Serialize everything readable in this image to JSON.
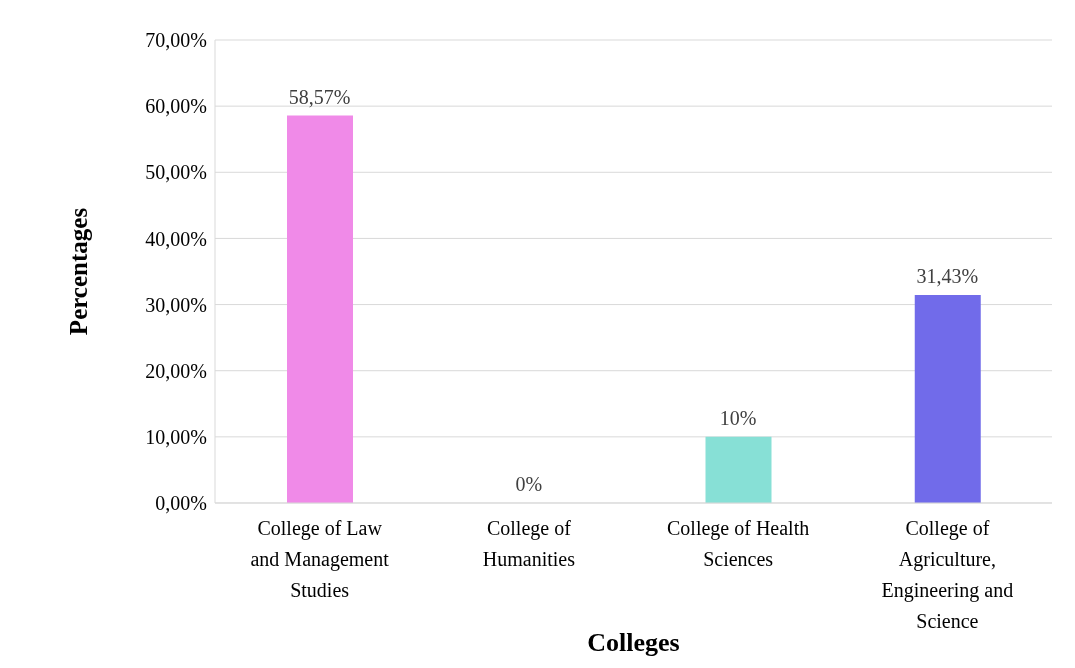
{
  "chart_data": {
    "type": "bar",
    "xlabel": "Colleges",
    "ylabel": "Percentages",
    "categories": [
      "College of Law and Management Studies",
      "College of Humanities",
      "College of Health Sciences",
      "College of Agriculture, Engineering and Science"
    ],
    "values": [
      58.57,
      0,
      10,
      31.43
    ],
    "colors": [
      "#f08ae8",
      "#a5a5a5",
      "#87e0d6",
      "#716bea"
    ],
    "value_labels": [
      "58,57%",
      "0%",
      "10%",
      "31,43%"
    ],
    "ylim": [
      0,
      70
    ],
    "yticks": [
      {
        "value": 0,
        "label": "0,00%"
      },
      {
        "value": 10,
        "label": "10,00%"
      },
      {
        "value": 20,
        "label": "20,00%"
      },
      {
        "value": 30,
        "label": "30,00%"
      },
      {
        "value": 40,
        "label": "40,00%"
      },
      {
        "value": 50,
        "label": "50,00%"
      },
      {
        "value": 60,
        "label": "60,00%"
      },
      {
        "value": 70,
        "label": "70,00%"
      }
    ],
    "grid": "y",
    "legend": false
  }
}
